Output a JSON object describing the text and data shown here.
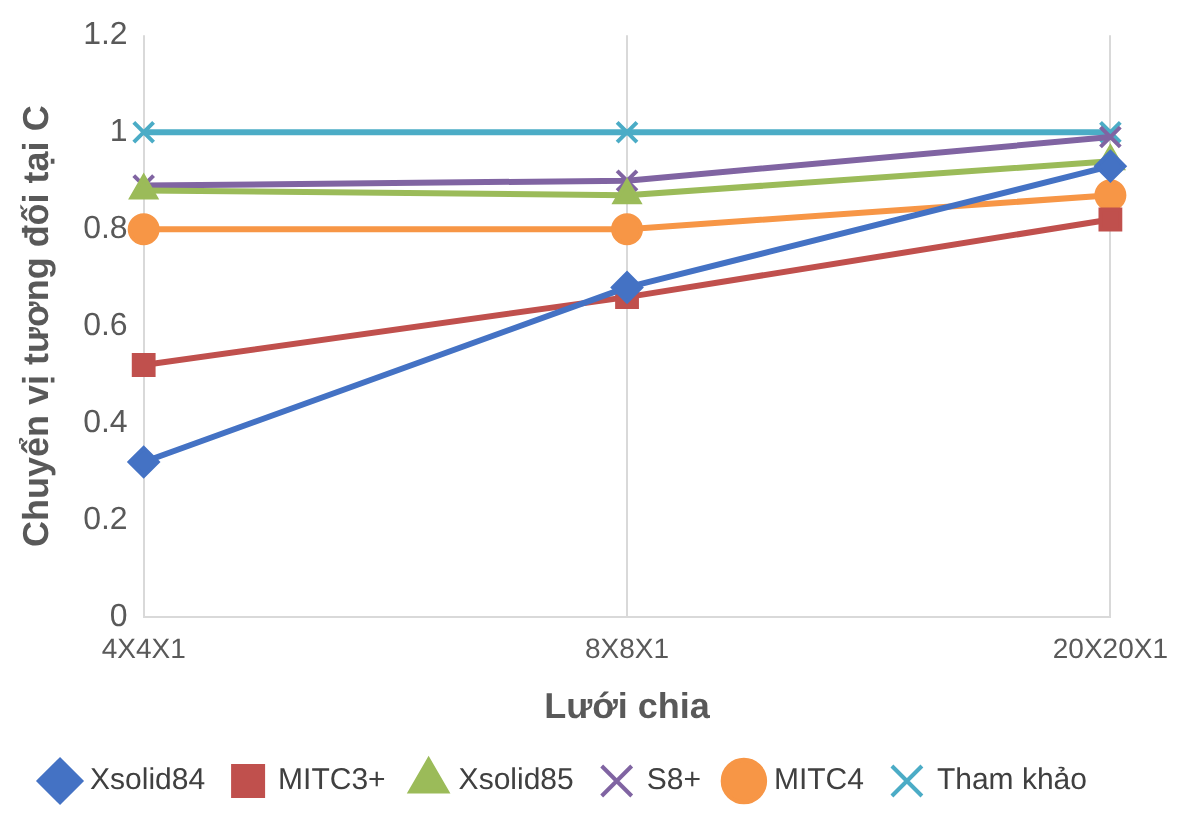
{
  "chart_data": {
    "type": "line",
    "xlabel": "Lưới chia",
    "ylabel": "Chuyển vị tương đối tại C",
    "categories": [
      "4X4X1",
      "8X8X1",
      "20X20X1"
    ],
    "ylim": [
      0,
      1.2
    ],
    "yticks": [
      0,
      0.2,
      0.4,
      0.6,
      0.8,
      1,
      1.2
    ],
    "grid": "x",
    "legend": "bottom",
    "line_style": "solid",
    "series": [
      {
        "name": "Xsolid84",
        "color": "#4472c4",
        "marker": "diamond",
        "values": [
          0.32,
          0.68,
          0.93
        ]
      },
      {
        "name": "MITC3+",
        "color": "#c0504d",
        "marker": "square",
        "values": [
          0.52,
          0.66,
          0.82
        ]
      },
      {
        "name": "Xsolid85",
        "color": "#9bbb59",
        "marker": "triangle",
        "values": [
          0.88,
          0.87,
          0.94
        ]
      },
      {
        "name": "S8+",
        "color": "#8064a2",
        "marker": "cross",
        "values": [
          0.89,
          0.9,
          0.99
        ]
      },
      {
        "name": "MITC4",
        "color": "#f79646",
        "marker": "circle",
        "values": [
          0.8,
          0.8,
          0.87
        ]
      },
      {
        "name": "Tham khảo",
        "color": "#4bacc6",
        "marker": "cross",
        "values": [
          1,
          1,
          1
        ]
      }
    ]
  }
}
